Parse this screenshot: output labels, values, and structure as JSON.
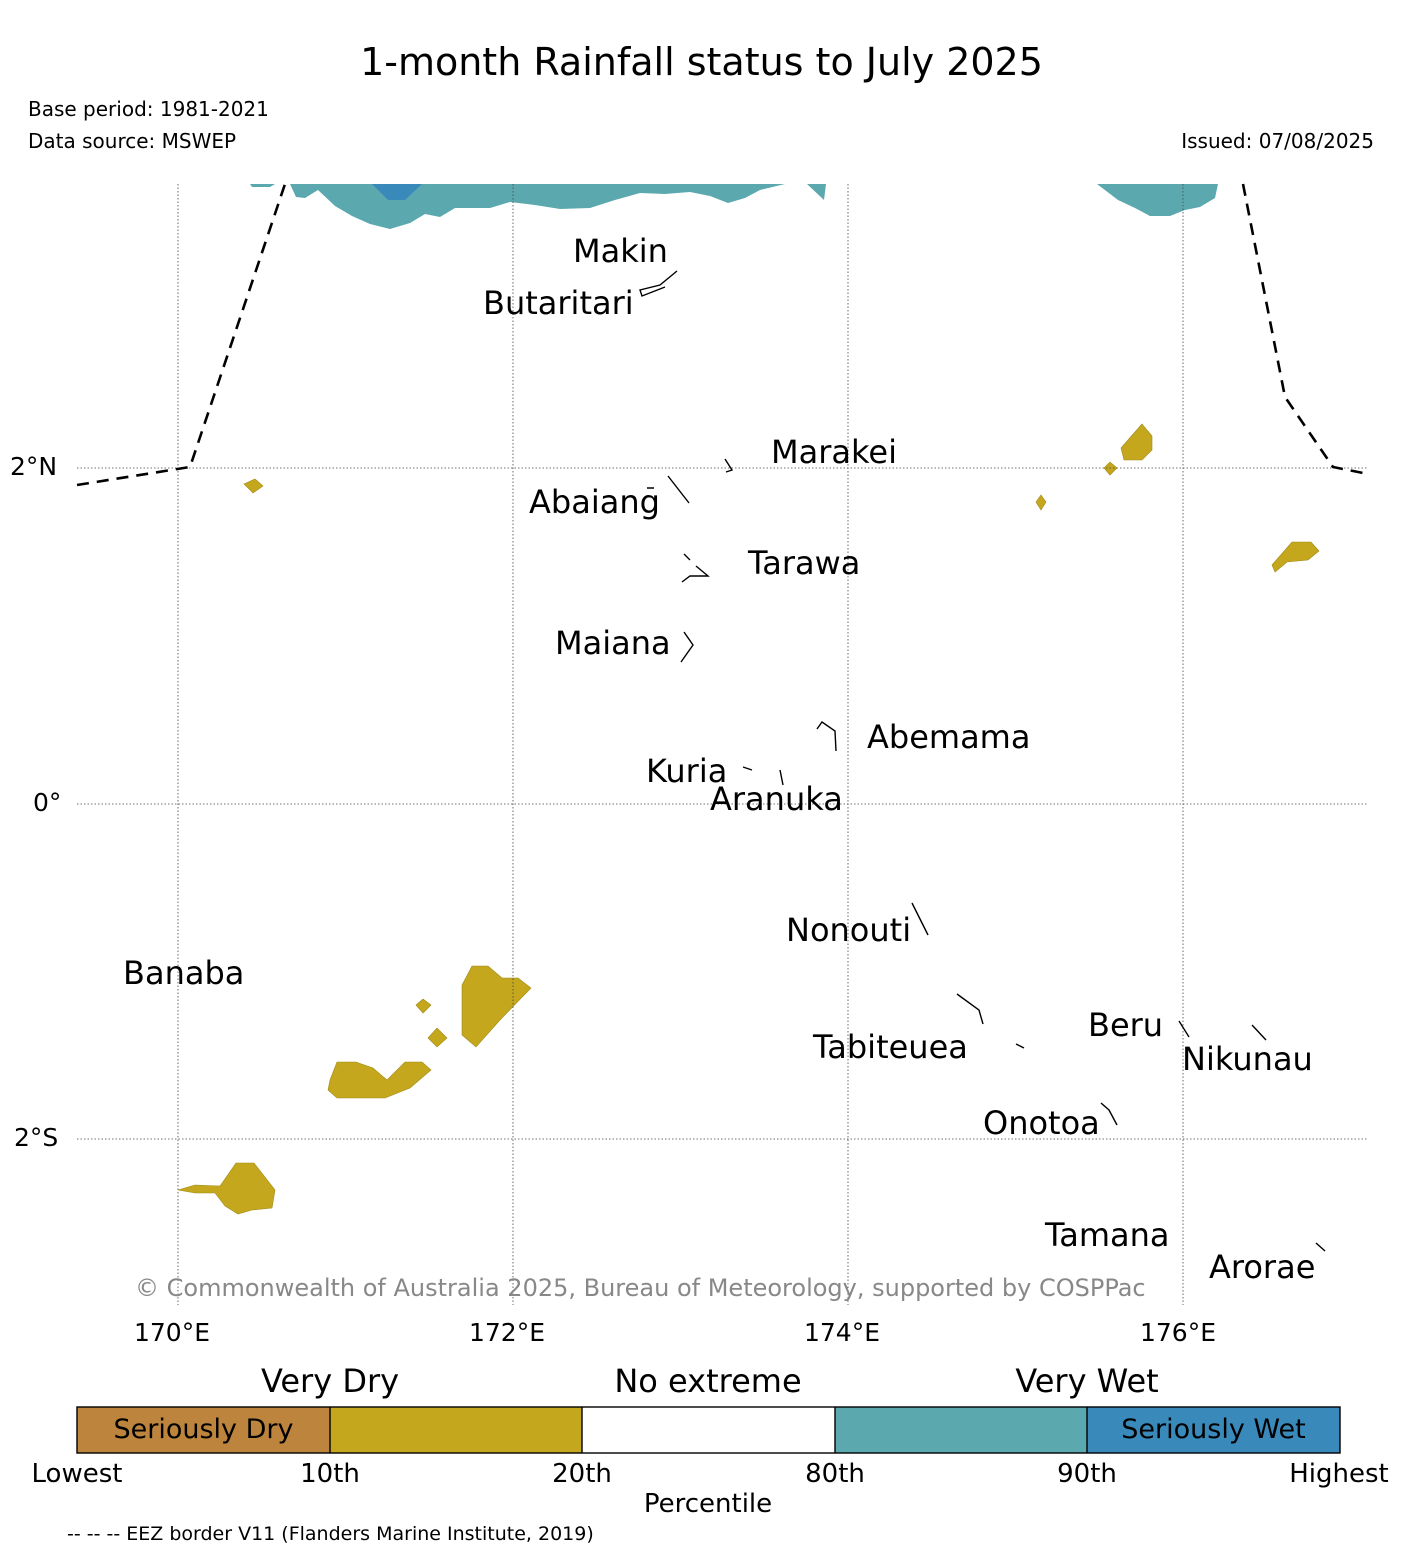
{
  "header": {
    "title": "1-month Rainfall status to July 2025",
    "base_period": "Base period: 1981-2021",
    "data_source": "Data source: MSWEP",
    "issued": "Issued: 07/08/2025"
  },
  "map": {
    "lon_range": [
      169.4,
      177.1
    ],
    "lat_range": [
      -2.95,
      3.7
    ],
    "lat_labels": [
      {
        "value": 2,
        "text": "2°N"
      },
      {
        "value": 0,
        "text": "0°"
      },
      {
        "value": -2,
        "text": "2°S"
      }
    ],
    "lon_labels": [
      {
        "value": 170,
        "text": "170°E"
      },
      {
        "value": 172,
        "text": "172°E"
      },
      {
        "value": 174,
        "text": "174°E"
      },
      {
        "value": 176,
        "text": "176°E"
      }
    ],
    "islands": [
      "Makin",
      "Butaritari",
      "Marakei",
      "Abaiang",
      "Tarawa",
      "Maiana",
      "Abemama",
      "Kuria",
      "Aranuka",
      "Nonouti",
      "Banaba",
      "Beru",
      "Tabiteuea",
      "Nikunau",
      "Onotoa",
      "Tamana",
      "Arorae"
    ],
    "copyright": "© Commonwealth of Australia 2025, Bureau of Meteorology, supported by COSPPac"
  },
  "legend": {
    "categories": [
      "Very Dry",
      "No extreme",
      "Very Wet"
    ],
    "bins": [
      {
        "label": "Seriously Dry",
        "color": "#bc843c"
      },
      {
        "label": "",
        "color": "#c4a71d"
      },
      {
        "label": "",
        "color": "#ffffff"
      },
      {
        "label": "",
        "color": "#5ba9ae"
      },
      {
        "label": "Seriously Wet",
        "color": "#3989bb"
      }
    ],
    "percentiles": [
      "Lowest",
      "10th",
      "20th",
      "80th",
      "90th",
      "Highest"
    ],
    "axis_label": "Percentile",
    "eez_note": "-- -- -- EEZ border V11 (Flanders Marine Institute, 2019)"
  }
}
